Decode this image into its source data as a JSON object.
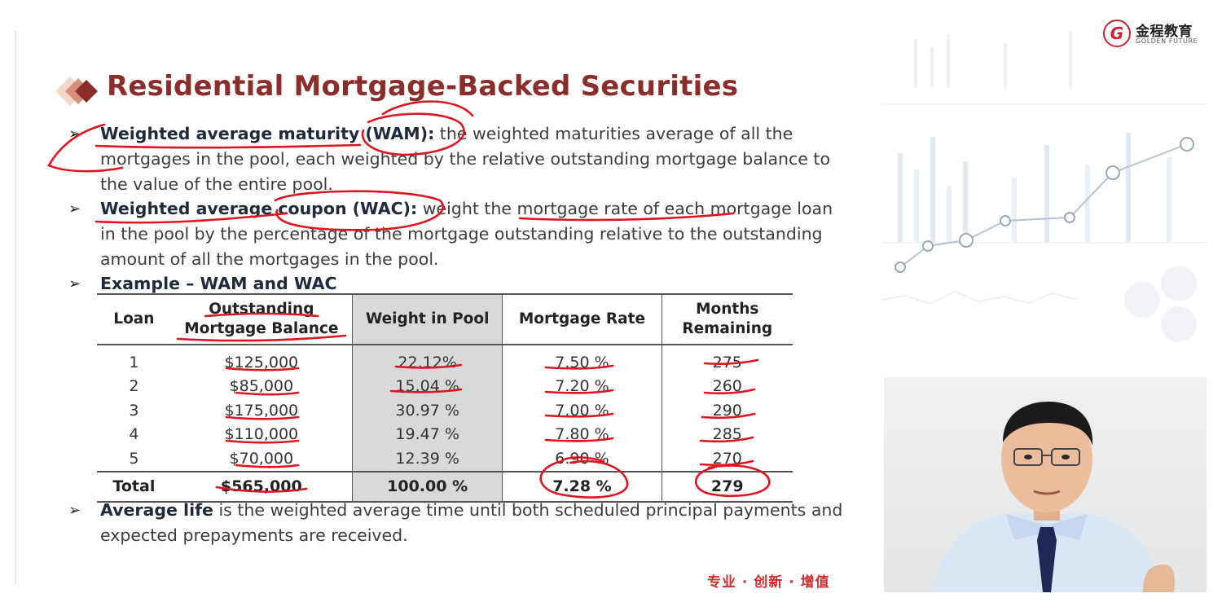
{
  "slide": {
    "title": "Residential Mortgage-Backed Securities",
    "bullets": {
      "wam": {
        "lead": "Weighted average maturity (WAM):",
        "text": " the weighted maturities average of all the mortgages in the pool, each weighted by the relative outstanding mortgage balance to the value of the entire pool."
      },
      "wac": {
        "lead": "Weighted average coupon (WAC):",
        "text": " weight the mortgage rate of each mortgage loan in the pool by the percentage of the mortgage outstanding relative to the outstanding amount of all the mortgages in the pool."
      },
      "example": {
        "lead": "Example – WAM and WAC"
      },
      "average_life": {
        "lead": "Average life",
        "text": " is the weighted average time until both scheduled principal payments and expected prepayments are received."
      }
    },
    "table": {
      "headers": {
        "loan": "Loan",
        "balance_1": "Outstanding",
        "balance_2": "Mortgage Balance",
        "weight": "Weight in Pool",
        "rate": "Mortgage Rate",
        "months_1": "Months",
        "months_2": "Remaining"
      },
      "rows": [
        {
          "loan": "1",
          "balance": "$125,000",
          "weight": "22.12%",
          "rate": "7.50 %",
          "months": "275"
        },
        {
          "loan": "2",
          "balance": "$85,000",
          "weight": "15.04 %",
          "rate": "7.20 %",
          "months": "260"
        },
        {
          "loan": "3",
          "balance": "$175,000",
          "weight": "30.97 %",
          "rate": "7.00 %",
          "months": "290"
        },
        {
          "loan": "4",
          "balance": "$110,000",
          "weight": "19.47 %",
          "rate": "7.80 %",
          "months": "285"
        },
        {
          "loan": "5",
          "balance": "$70,000",
          "weight": "12.39 %",
          "rate": "6.90 %",
          "months": "270"
        }
      ],
      "total": {
        "label": "Total",
        "balance": "$565,000",
        "weight": "100.00 %",
        "rate": "7.28 %",
        "months": "279"
      }
    },
    "slogan": "专业 · 创新 · 增值"
  },
  "brand": {
    "name_cn": "金程教育",
    "name_en": "GOLDEN FUTURE",
    "mark": "G"
  },
  "colors": {
    "title": "#8b2d2b",
    "ink": "#e0141e",
    "weight_column_bg": "#d9d9d9",
    "slogan": "#d22b2b"
  }
}
